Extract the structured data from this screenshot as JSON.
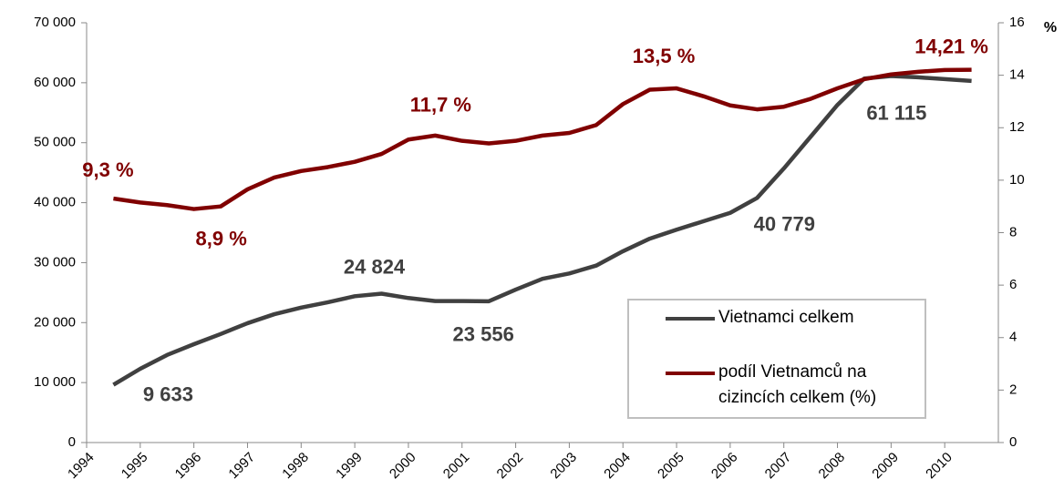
{
  "chart_data": {
    "type": "line",
    "x": [
      1994.5,
      1995,
      1995.5,
      1996,
      1996.5,
      1997,
      1997.5,
      1998,
      1998.5,
      1999,
      1999.5,
      2000,
      2000.5,
      2001,
      2001.5,
      2002,
      2002.5,
      2003,
      2003.5,
      2004,
      2004.5,
      2005,
      2005.5,
      2006,
      2006.5,
      2007,
      2007.5,
      2008,
      2008.5,
      2009,
      2009.5,
      2010,
      2010.5
    ],
    "series": [
      {
        "name": "Vietnamci celkem",
        "color": "#404040",
        "values": [
          9633,
          12300,
          14600,
          16400,
          18100,
          19900,
          21400,
          22500,
          23400,
          24400,
          24824,
          24100,
          23600,
          23600,
          23556,
          25500,
          27300,
          28200,
          29500,
          31900,
          34000,
          35500,
          36900,
          38300,
          40779,
          45700,
          51000,
          56300,
          60700,
          61115,
          60900,
          60600,
          60300
        ],
        "value_labels": [
          "9 633",
          null,
          null,
          null,
          null,
          null,
          null,
          null,
          null,
          null,
          "24 824",
          null,
          null,
          null,
          "23 556",
          null,
          null,
          null,
          null,
          null,
          null,
          null,
          null,
          null,
          "40 779",
          null,
          null,
          null,
          null,
          "61 115",
          null,
          null,
          null
        ]
      },
      {
        "name": "podíl Vietnamců na cizincích celkem (%)",
        "color": "#800000",
        "axis": "y2",
        "values": [
          9.3,
          9.15,
          9.05,
          8.9,
          9.0,
          9.65,
          10.1,
          10.35,
          10.5,
          10.7,
          11.0,
          11.55,
          11.7,
          11.5,
          11.4,
          11.5,
          11.7,
          11.8,
          12.1,
          12.9,
          13.45,
          13.5,
          13.2,
          12.85,
          12.7,
          12.8,
          13.1,
          13.5,
          13.85,
          14.03,
          14.13,
          14.2,
          14.21
        ],
        "value_labels": [
          "9,3 %",
          null,
          null,
          "8,9 %",
          null,
          null,
          null,
          null,
          null,
          null,
          null,
          null,
          "11,7 %",
          null,
          null,
          null,
          null,
          null,
          null,
          null,
          null,
          "13,5 %",
          null,
          null,
          null,
          null,
          null,
          null,
          null,
          null,
          null,
          null,
          "14,21 %"
        ]
      }
    ],
    "xlim": [
      1994,
      2011
    ],
    "xticks": [
      1994,
      1995,
      1996,
      1997,
      1998,
      1999,
      2000,
      2001,
      2002,
      2003,
      2004,
      2005,
      2006,
      2007,
      2008,
      2009,
      2010
    ],
    "ylim": [
      0,
      70000
    ],
    "yticks": [
      0,
      {
        "value": 10000,
        "label": "10 000"
      },
      {
        "value": 20000,
        "label": "20 000"
      },
      {
        "value": 30000,
        "label": "30 000"
      },
      {
        "value": 40000,
        "label": "40 000"
      },
      {
        "value": 50000,
        "label": "50 000"
      },
      {
        "value": 60000,
        "label": "60 000"
      },
      {
        "value": 70000,
        "label": "70 000"
      }
    ],
    "y2lim": [
      0,
      16
    ],
    "y2ticks": [
      0,
      2,
      4,
      6,
      8,
      10,
      12,
      14,
      16
    ],
    "y2label": "%",
    "grid": false,
    "legend": "lower right"
  }
}
